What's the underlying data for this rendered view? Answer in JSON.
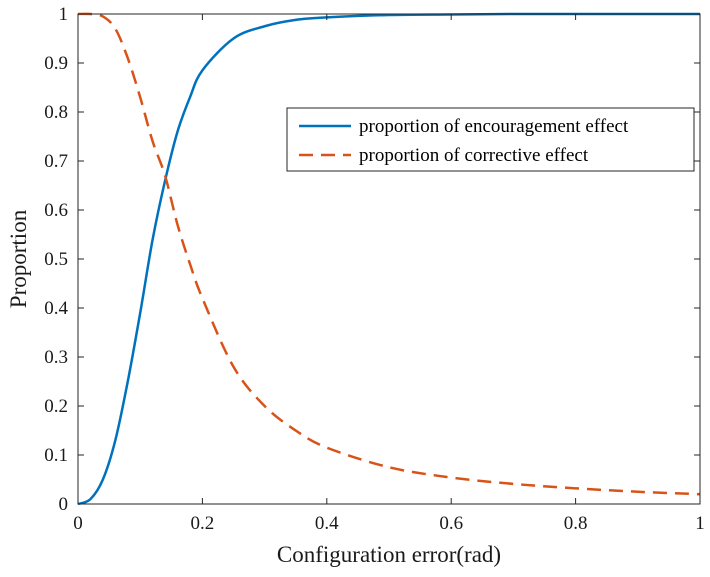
{
  "chart_data": {
    "type": "line",
    "xlabel": "Configuration error(rad)",
    "ylabel": "Proportion",
    "xlim": [
      0,
      1
    ],
    "ylim": [
      0,
      1
    ],
    "xticks": [
      "0",
      "0.2",
      "0.4",
      "0.6",
      "0.8",
      "1"
    ],
    "yticks": [
      "0",
      "0.1",
      "0.2",
      "0.3",
      "0.4",
      "0.5",
      "0.6",
      "0.7",
      "0.8",
      "0.9",
      "1"
    ],
    "grid": false,
    "legend_position": "top-right",
    "series": [
      {
        "name": "proportion of encouragement effect",
        "color": "#0072BD",
        "style": "solid",
        "x": [
          0,
          0.02,
          0.04,
          0.06,
          0.08,
          0.1,
          0.12,
          0.14,
          0.16,
          0.18,
          0.2,
          0.25,
          0.3,
          0.35,
          0.4,
          0.5,
          0.6,
          0.7,
          0.8,
          0.9,
          1.0
        ],
        "y": [
          0,
          0.01,
          0.05,
          0.13,
          0.25,
          0.39,
          0.54,
          0.66,
          0.76,
          0.83,
          0.885,
          0.95,
          0.975,
          0.988,
          0.993,
          0.998,
          0.999,
          1.0,
          1.0,
          1.0,
          1.0
        ]
      },
      {
        "name": "proportion of corrective effect",
        "color": "#D95319",
        "style": "dashed",
        "x": [
          0,
          0.02,
          0.04,
          0.06,
          0.08,
          0.1,
          0.12,
          0.14,
          0.16,
          0.18,
          0.2,
          0.25,
          0.3,
          0.35,
          0.4,
          0.5,
          0.6,
          0.7,
          0.8,
          0.9,
          1.0
        ],
        "y": [
          1.0,
          1.0,
          0.995,
          0.97,
          0.91,
          0.83,
          0.74,
          0.67,
          0.57,
          0.49,
          0.42,
          0.28,
          0.2,
          0.15,
          0.115,
          0.075,
          0.054,
          0.041,
          0.032,
          0.025,
          0.02
        ]
      }
    ]
  }
}
